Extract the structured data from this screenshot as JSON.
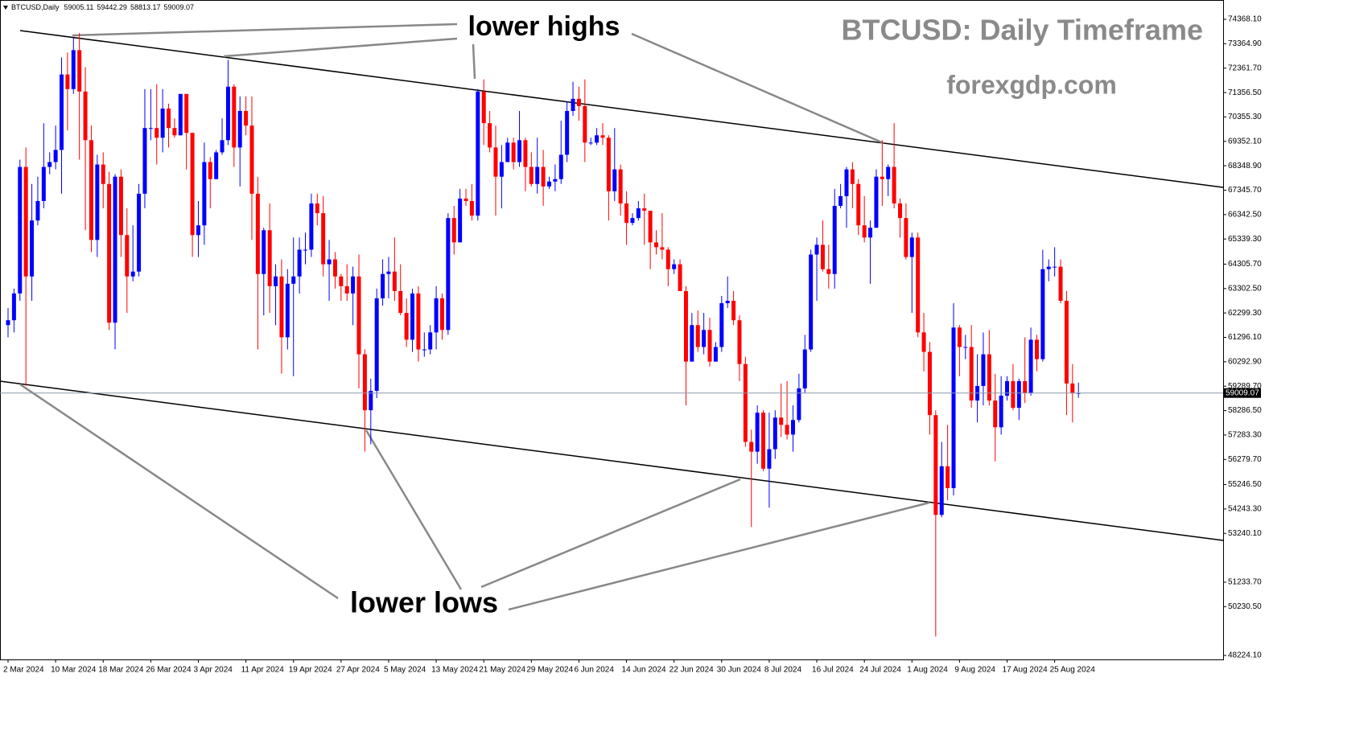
{
  "chart_data": {
    "type": "candlestick",
    "symbol": "BTCUSD,Daily",
    "title": "BTCUSD: Daily Timeframe",
    "subtitle": "forexgdp.com",
    "annotations": [
      "lower highs",
      "lower lows"
    ],
    "up_color": "#0000ff",
    "down_color": "#ff0000",
    "categories": [
      "2 Mar 2024",
      null,
      null,
      null,
      null,
      null,
      null,
      null,
      "10 Mar 2024",
      null,
      null,
      null,
      null,
      null,
      null,
      null,
      "18 Mar 2024",
      null,
      null,
      null,
      null,
      null,
      null,
      null,
      "26 Mar 2024",
      null,
      null,
      null,
      null,
      null,
      null,
      null,
      "3 Apr 2024",
      null,
      null,
      null,
      null,
      null,
      null,
      null,
      "11 Apr 2024",
      null,
      null,
      null,
      null,
      null,
      null,
      null,
      "19 Apr 2024",
      null,
      null,
      null,
      null,
      null,
      null,
      null,
      "27 Apr 2024",
      null,
      null,
      null,
      null,
      null,
      null,
      null,
      "5 May 2024",
      null,
      null,
      null,
      null,
      null,
      null,
      null,
      "13 May 2024",
      null,
      null,
      null,
      null,
      null,
      null,
      null,
      "21 May 2024",
      null,
      null,
      null,
      null,
      null,
      null,
      null,
      "29 May 2024",
      null,
      null,
      null,
      null,
      null,
      null,
      null,
      "6 Jun 2024",
      null,
      null,
      null,
      null,
      null,
      null,
      null,
      "14 Jun 2024",
      null,
      null,
      null,
      null,
      null,
      null,
      null,
      "22 Jun 2024",
      null,
      null,
      null,
      null,
      null,
      null,
      null,
      "30 Jun 2024",
      null,
      null,
      null,
      null,
      null,
      null,
      null,
      "8 Jul 2024",
      null,
      null,
      null,
      null,
      null,
      null,
      null,
      "16 Jul 2024",
      null,
      null,
      null,
      null,
      null,
      null,
      null,
      "24 Jul 2024",
      null,
      null,
      null,
      null,
      null,
      null,
      null,
      "1 Aug 2024",
      null,
      null,
      null,
      null,
      null,
      null,
      null,
      "9 Aug 2024",
      null,
      null,
      null,
      null,
      null,
      null,
      null,
      "17 Aug 2024",
      null,
      null,
      null,
      null,
      null,
      null,
      null,
      "25 Aug 2024",
      null,
      null,
      null,
      null
    ],
    "open": [
      61800,
      62000,
      63100,
      68300,
      63800,
      66100,
      66900,
      68300,
      68500,
      69000,
      72100,
      71500,
      73100,
      71400,
      69400,
      65300,
      68400,
      67600,
      61900,
      67900,
      65500,
      63800,
      64000,
      67200,
      69900,
      69900,
      69500,
      70700,
      69900,
      69600,
      71300,
      69700,
      65500,
      65900,
      68500,
      67800,
      68900,
      69400,
      71600,
      69100,
      70600,
      70000,
      67200,
      63900,
      65700,
      63400,
      63800,
      61300,
      63500,
      63800,
      64900,
      64900,
      66800,
      66400,
      64300,
      64500,
      63800,
      63400,
      63100,
      63800,
      60600,
      58300,
      59100,
      62900,
      63900,
      64000,
      63200,
      62300,
      61200,
      63100,
      60800,
      60800,
      61500,
      62900,
      61600,
      66200,
      65200,
      67000,
      66900,
      66300,
      71400,
      70100,
      69100,
      67900,
      68500,
      69300,
      68500,
      69400,
      68300,
      67600,
      68300,
      67500,
      67700,
      67800,
      68800,
      70600,
      71100,
      70800,
      69300,
      69300,
      69600,
      69500,
      67300,
      68200,
      66800,
      66000,
      66200,
      66600,
      66500,
      65200,
      65000,
      64900,
      64100,
      64300,
      63200,
      60300,
      61800,
      60900,
      61600,
      60300,
      60900,
      62700,
      62800,
      62000,
      60200,
      57000,
      56600,
      58200,
      55900,
      56700,
      58000,
      57700,
      57300,
      57900,
      59200,
      60800,
      64700,
      65100,
      64100,
      63900,
      66700,
      67100,
      68200,
      67600,
      65900,
      65400,
      65800,
      67900,
      67800,
      68300,
      66800,
      66200,
      64600,
      65400,
      61500,
      60700,
      58100,
      54000,
      56000,
      55100,
      61700,
      60900,
      60900,
      58700,
      59300,
      60600,
      58700,
      57600,
      58900,
      59500,
      58400,
      59500,
      59000,
      61200,
      60400,
      64100,
      64200,
      64200,
      62800,
      59400,
      59005.11
    ],
    "high": [
      62500,
      63300,
      68600,
      69100,
      67600,
      67900,
      70100,
      68900,
      70000,
      72800,
      73000,
      73600,
      73800,
      72400,
      70000,
      68800,
      68900,
      68100,
      68000,
      68200,
      66600,
      65900,
      67600,
      71500,
      71500,
      71700,
      71500,
      70900,
      70300,
      71300,
      71300,
      69700,
      66900,
      69300,
      68700,
      69000,
      70300,
      72700,
      71700,
      71200,
      71200,
      71200,
      67900,
      65800,
      66800,
      64300,
      64500,
      64100,
      65400,
      65400,
      65600,
      67200,
      67200,
      67100,
      65300,
      64800,
      63900,
      64300,
      64200,
      64700,
      60800,
      59600,
      63300,
      64500,
      64600,
      65400,
      64300,
      62900,
      63300,
      63400,
      61500,
      61800,
      63400,
      63100,
      66400,
      66700,
      67400,
      67400,
      67600,
      71500,
      71900,
      70600,
      70000,
      69200,
      69500,
      69500,
      70600,
      69500,
      68900,
      69500,
      69000,
      67900,
      68400,
      70200,
      71000,
      71800,
      71600,
      71900,
      69500,
      69900,
      70100,
      69600,
      69900,
      68400,
      67300,
      66400,
      66900,
      67200,
      66500,
      65700,
      66400,
      65000,
      64500,
      64500,
      63400,
      62300,
      62400,
      62300,
      62100,
      61100,
      63000,
      63800,
      63200,
      62200,
      60500,
      57500,
      58500,
      58300,
      58200,
      58300,
      59400,
      59500,
      58500,
      59800,
      61400,
      64900,
      65400,
      66100,
      65100,
      67400,
      67600,
      68300,
      68500,
      67800,
      67100,
      66100,
      68200,
      69400,
      68400,
      70100,
      67000,
      66800,
      65600,
      65600,
      62300,
      61100,
      58300,
      57000,
      57700,
      62700,
      61800,
      61400,
      61800,
      60600,
      61500,
      61600,
      59800,
      59700,
      59700,
      60200,
      59600,
      61300,
      61700,
      61400,
      64900,
      64500,
      65000,
      64500,
      63200,
      60200,
      59442.29
    ],
    "low": [
      61300,
      61500,
      62800,
      59300,
      62800,
      65900,
      66600,
      68000,
      68200,
      67200,
      69800,
      71300,
      68600,
      65700,
      64800,
      64600,
      66600,
      61600,
      60800,
      64600,
      62300,
      63600,
      63800,
      66600,
      69400,
      68400,
      68900,
      69100,
      69500,
      69600,
      68200,
      64600,
      64600,
      65100,
      66600,
      67800,
      68800,
      69200,
      68300,
      67500,
      69600,
      65300,
      60800,
      62200,
      62300,
      61800,
      59800,
      60800,
      59700,
      63100,
      64300,
      64600,
      65900,
      63800,
      62800,
      63300,
      62800,
      62800,
      61800,
      59200,
      56600,
      56900,
      58800,
      62600,
      62900,
      62800,
      62200,
      60900,
      60700,
      60300,
      60500,
      60600,
      60800,
      61200,
      61400,
      64700,
      65200,
      66700,
      66100,
      66100,
      69200,
      68900,
      66300,
      66600,
      68500,
      68200,
      68300,
      67300,
      67500,
      67200,
      66700,
      67400,
      67300,
      67600,
      68500,
      70400,
      70200,
      68500,
      69200,
      69200,
      69200,
      66100,
      66900,
      66300,
      65100,
      65900,
      66100,
      65100,
      64100,
      64700,
      64500,
      63400,
      63900,
      63200,
      58500,
      60300,
      60700,
      60600,
      60100,
      60300,
      60700,
      62500,
      61800,
      59500,
      56800,
      53500,
      56100,
      55800,
      54300,
      56300,
      57200,
      57100,
      56600,
      57800,
      59000,
      60700,
      62800,
      64000,
      63300,
      63300,
      66600,
      65800,
      66600,
      65500,
      65200,
      63500,
      65800,
      66700,
      67100,
      66600,
      65400,
      64500,
      62300,
      61300,
      59900,
      57300,
      49000,
      53900,
      54600,
      54800,
      59700,
      60400,
      58400,
      57800,
      58500,
      58500,
      56200,
      57300,
      58700,
      58300,
      57900,
      58600,
      58900,
      59900,
      60300,
      63600,
      63800,
      62700,
      58100,
      57800,
      58813.17
    ],
    "close": [
      62000,
      63100,
      68300,
      63800,
      66100,
      66900,
      68300,
      68500,
      69000,
      72100,
      71500,
      73100,
      71400,
      69400,
      65300,
      68400,
      67600,
      61900,
      67900,
      65500,
      63800,
      64000,
      67200,
      69900,
      69900,
      69500,
      70700,
      69900,
      69600,
      71300,
      69700,
      65500,
      65900,
      68500,
      67800,
      68900,
      69400,
      71600,
      69100,
      70600,
      70000,
      67200,
      63900,
      65700,
      63400,
      63800,
      61300,
      63500,
      63800,
      64900,
      64900,
      66800,
      66400,
      64300,
      64500,
      63800,
      63400,
      63100,
      63800,
      60600,
      58300,
      59100,
      62900,
      63900,
      64000,
      63200,
      62300,
      61200,
      63100,
      60800,
      60800,
      61500,
      62900,
      61600,
      66200,
      65200,
      67000,
      66900,
      66300,
      71400,
      70100,
      69100,
      67900,
      68500,
      69300,
      68500,
      69400,
      68300,
      67600,
      68300,
      67500,
      67700,
      67800,
      68800,
      70600,
      71100,
      70800,
      69300,
      69300,
      69600,
      69500,
      67300,
      68200,
      66800,
      66000,
      66200,
      66600,
      66500,
      65200,
      65000,
      64900,
      64100,
      64300,
      63200,
      60300,
      61800,
      60900,
      61600,
      60300,
      60900,
      62700,
      62800,
      62000,
      60200,
      57000,
      56600,
      58200,
      55900,
      56700,
      58000,
      57700,
      57300,
      57900,
      59200,
      60800,
      64700,
      65100,
      64100,
      63900,
      66700,
      67100,
      68200,
      67600,
      65900,
      65400,
      65800,
      67900,
      67800,
      68300,
      66800,
      66200,
      64600,
      65400,
      61500,
      60700,
      58100,
      54000,
      56000,
      55100,
      61700,
      60900,
      60900,
      58700,
      59300,
      60600,
      58700,
      57600,
      58900,
      59500,
      58400,
      59500,
      59000,
      61200,
      60400,
      64100,
      64200,
      64200,
      62800,
      59400,
      59000,
      59009.07
    ],
    "ylim": [
      48060,
      75161
    ],
    "yticks": [
      {
        "value": 74368.1,
        "label": "74368.10"
      },
      {
        "value": 73364.9,
        "label": "73364.90"
      },
      {
        "value": 72361.7,
        "label": "72361.70"
      },
      {
        "value": 71356.5,
        "label": "71356.50"
      },
      {
        "value": 70355.3,
        "label": "70355.30"
      },
      {
        "value": 69352.1,
        "label": "69352.10"
      },
      {
        "value": 68348.9,
        "label": "68348.90"
      },
      {
        "value": 67345.7,
        "label": "67345.70"
      },
      {
        "value": 66342.5,
        "label": "66342.50"
      },
      {
        "value": 65339.3,
        "label": "65339.30"
      },
      {
        "value": 64305.7,
        "label": "64305.70"
      },
      {
        "value": 63302.5,
        "label": "63302.50"
      },
      {
        "value": 62299.3,
        "label": "62299.30"
      },
      {
        "value": 61296.1,
        "label": "61296.10"
      },
      {
        "value": 60292.9,
        "label": "60292.90"
      },
      {
        "value": 59289.7,
        "label": "59289.70"
      },
      {
        "value": 58286.5,
        "label": "58286.50"
      },
      {
        "value": 57283.3,
        "label": "57283.30"
      },
      {
        "value": 56279.7,
        "label": "56279.70"
      },
      {
        "value": 55246.5,
        "label": "55246.50"
      },
      {
        "value": 54243.3,
        "label": "54243.30"
      },
      {
        "value": 53240.1,
        "label": "53240.10"
      },
      {
        "value": 51233.7,
        "label": "51233.70"
      },
      {
        "value": 50230.5,
        "label": "50230.50"
      },
      {
        "value": 48224.1,
        "label": "48224.10"
      }
    ]
  }
}
